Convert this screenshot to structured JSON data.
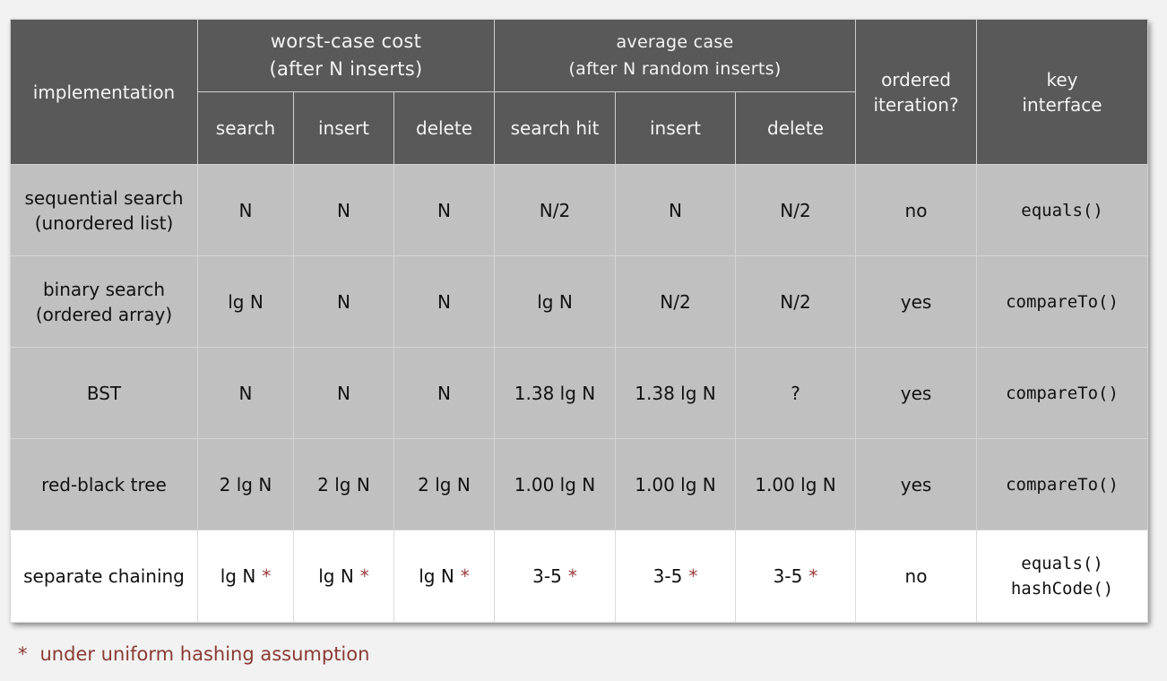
{
  "header": {
    "implementation": "implementation",
    "worst_case_line1": "worst-case cost",
    "worst_case_line2": "(after N inserts)",
    "average_line1": "average case",
    "average_line2": "(after N random inserts)",
    "ordered_line1": "ordered",
    "ordered_line2": "iteration?",
    "key_line1": "key",
    "key_line2": "interface",
    "sub_columns": [
      "search",
      "insert",
      "delete",
      "search hit",
      "insert",
      "delete"
    ]
  },
  "rows": [
    {
      "impl_line1": "sequential search",
      "impl_line2": "(unordered list)",
      "cells": [
        "N",
        "N",
        "N",
        "N/2",
        "N",
        "N/2"
      ],
      "ordered": "no",
      "key_line1": "equals()",
      "key_line2": ""
    },
    {
      "impl_line1": "binary search",
      "impl_line2": "(ordered array)",
      "cells": [
        "lg N",
        "N",
        "N",
        "lg N",
        "N/2",
        "N/2"
      ],
      "ordered": "yes",
      "key_line1": "compareTo()",
      "key_line2": ""
    },
    {
      "impl_line1": "BST",
      "impl_line2": "",
      "cells": [
        "N",
        "N",
        "N",
        "1.38 lg N",
        "1.38 lg N",
        "?"
      ],
      "ordered": "yes",
      "key_line1": "compareTo()",
      "key_line2": ""
    },
    {
      "impl_line1": "red-black tree",
      "impl_line2": "",
      "cells": [
        "2 lg N",
        "2 lg N",
        "2 lg N",
        "1.00 lg N",
        "1.00 lg N",
        "1.00 lg N"
      ],
      "ordered": "yes",
      "key_line1": "compareTo()",
      "key_line2": ""
    },
    {
      "impl_line1": "separate chaining",
      "impl_line2": "",
      "cells": [
        "lg N",
        "lg N",
        "lg N",
        "3-5",
        "3-5",
        "3-5"
      ],
      "star": "*",
      "ordered": "no",
      "key_line1": "equals()",
      "key_line2": "hashCode()"
    }
  ],
  "footnote": {
    "star": "*",
    "text": "under uniform hashing assumption"
  },
  "colors": {
    "header_bg": "#595959",
    "row_gray": "#c0c0c0",
    "row_highlight": "#ffffff",
    "footnote": "#8a3a34"
  }
}
